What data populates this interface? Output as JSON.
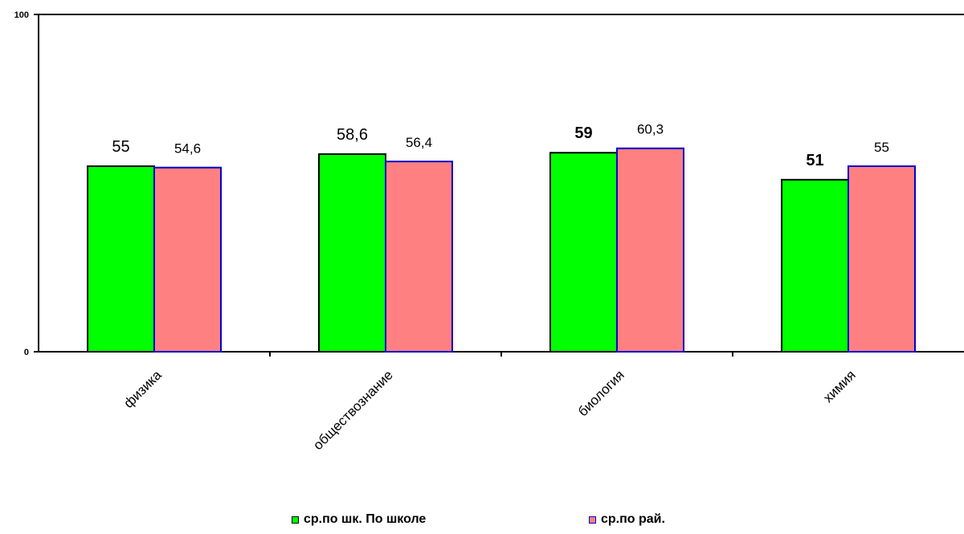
{
  "chart_data": {
    "type": "bar",
    "categories": [
      "физика",
      "обществознание",
      "биология",
      "химия"
    ],
    "series": [
      {
        "name": "ср.по шк. По школе",
        "values": [
          55,
          58.6,
          59,
          51
        ],
        "labels": [
          "55",
          "58,6",
          "59",
          "51"
        ],
        "bold_labels": [
          false,
          false,
          true,
          true
        ],
        "fill": "#00ff00",
        "stroke": "#000000"
      },
      {
        "name": "ср.по рай.",
        "values": [
          54.6,
          56.4,
          60.3,
          55
        ],
        "labels": [
          "54,6",
          "56,4",
          "60,3",
          "55"
        ],
        "bold_labels": [
          false,
          false,
          false,
          false
        ],
        "fill": "#ff8080",
        "stroke": "#0000cc"
      }
    ],
    "ylim": [
      0,
      100
    ],
    "y_tick_labels": [
      "0",
      "100"
    ],
    "grid": false,
    "legend_position": "bottom"
  }
}
